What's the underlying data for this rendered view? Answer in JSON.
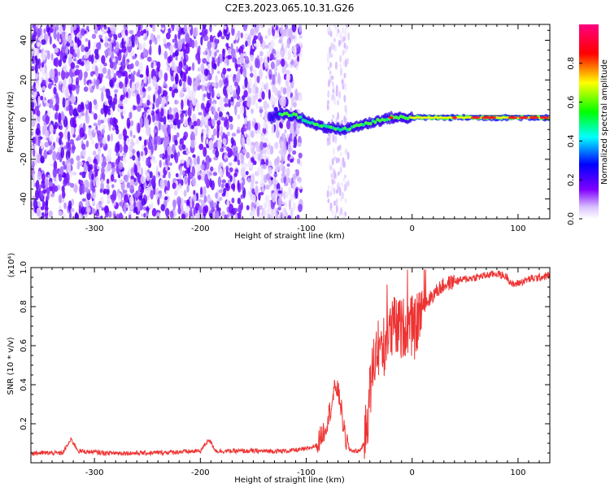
{
  "title": "C2E3.2023.065.10.31.G26",
  "chart_data": [
    {
      "type": "heatmap",
      "xlabel": "Height of straight line (km)",
      "ylabel": "Frequency (Hz)",
      "xlim": [
        -360,
        130
      ],
      "ylim": [
        -50,
        48
      ],
      "xticks": [
        -300,
        -200,
        -100,
        0,
        100
      ],
      "yticks": [
        -40,
        -20,
        0,
        20,
        40
      ],
      "colorbar": {
        "label": "Normalized spectral amplitude",
        "range": [
          0,
          1
        ],
        "ticks": [
          "0.0",
          "0.2",
          "0.4",
          "0.6",
          "0.8"
        ],
        "colormap": [
          "#ffffff",
          "#8000ff",
          "#0000ff",
          "#00ffff",
          "#00ff00",
          "#ffff00",
          "#ff0000",
          "#ff0080"
        ]
      },
      "features": {
        "noise_region_x": [
          -360,
          -105
        ],
        "secondary_noise_x": [
          -80,
          -60
        ],
        "signal_path": [
          {
            "x": -130,
            "y": 3,
            "amp": 0.25
          },
          {
            "x": -110,
            "y": 2,
            "amp": 0.35
          },
          {
            "x": -95,
            "y": -2,
            "amp": 0.4
          },
          {
            "x": -80,
            "y": -4,
            "amp": 0.3
          },
          {
            "x": -65,
            "y": -5,
            "amp": 0.3
          },
          {
            "x": -50,
            "y": -3,
            "amp": 0.45
          },
          {
            "x": -35,
            "y": -1,
            "amp": 0.5
          },
          {
            "x": -20,
            "y": 1,
            "amp": 0.6
          },
          {
            "x": 0,
            "y": 1,
            "amp": 0.55
          },
          {
            "x": 30,
            "y": 1,
            "amp": 0.7
          },
          {
            "x": 70,
            "y": 1,
            "amp": 0.85
          },
          {
            "x": 95,
            "y": 1,
            "amp": 0.8
          },
          {
            "x": 130,
            "y": 1,
            "amp": 0.85
          }
        ],
        "signal_line_y": 2
      }
    },
    {
      "type": "line",
      "xlabel": "Height of straight line (km)",
      "ylabel": "SNR (10 * v/v)",
      "y_multiplier": "(x10⁴)",
      "xlim": [
        -360,
        130
      ],
      "ylim": [
        0,
        1.0
      ],
      "xticks": [
        -300,
        -200,
        -100,
        0,
        100
      ],
      "yticks": [
        "0.2",
        "0.4",
        "0.6",
        "0.8",
        "1.0"
      ],
      "series": [
        {
          "color": "#ee3333",
          "x": [
            -360,
            -330,
            -322,
            -315,
            -290,
            -250,
            -200,
            -192,
            -185,
            -150,
            -120,
            -100,
            -90,
            -82,
            -76,
            -72,
            -68,
            -64,
            -60,
            -55,
            -50,
            -45,
            -42,
            -38,
            -35,
            -32,
            -28,
            -25,
            -22,
            -20,
            -17,
            -15,
            -12,
            -10,
            -7,
            -5,
            -2,
            0,
            3,
            6,
            10,
            15,
            20,
            25,
            30,
            35,
            40,
            50,
            60,
            70,
            80,
            90,
            95,
            100,
            110,
            120,
            130
          ],
          "y": [
            0.05,
            0.05,
            0.12,
            0.06,
            0.05,
            0.05,
            0.06,
            0.12,
            0.06,
            0.06,
            0.06,
            0.07,
            0.09,
            0.18,
            0.3,
            0.4,
            0.32,
            0.15,
            0.07,
            0.06,
            0.06,
            0.1,
            0.25,
            0.45,
            0.55,
            0.6,
            0.58,
            0.62,
            0.7,
            0.65,
            0.72,
            0.68,
            0.7,
            0.68,
            0.7,
            0.72,
            0.69,
            0.7,
            0.68,
            0.75,
            0.8,
            0.83,
            0.86,
            0.89,
            0.91,
            0.92,
            0.93,
            0.94,
            0.95,
            0.96,
            0.97,
            0.95,
            0.91,
            0.92,
            0.94,
            0.95,
            0.96
          ]
        }
      ]
    }
  ]
}
